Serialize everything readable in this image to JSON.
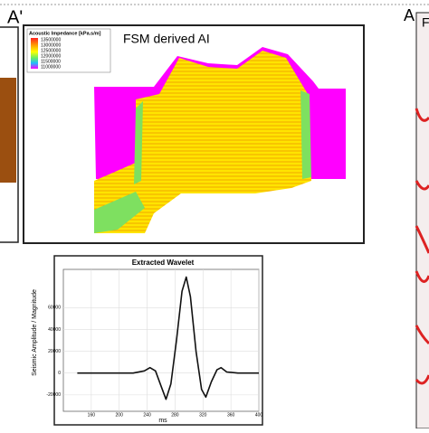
{
  "labels": {
    "left_panel": "A'",
    "right_panel": "A",
    "right_inset": "F"
  },
  "ai_panel": {
    "title": "FSM derived AI",
    "legend_title": "Acoustic Impedance [kPa.s/m]",
    "legend_ticks": [
      "13500000",
      "13000000",
      "12500000",
      "12000000",
      "11500000",
      "11000000"
    ]
  },
  "chart_data": {
    "type": "line",
    "title": "Extracted Wavelet",
    "x_label": "ms",
    "y_label": "Seismic Amplitude / Magnitude",
    "x": [
      140,
      180,
      220,
      236,
      244,
      252,
      260,
      267,
      274,
      282,
      290,
      296,
      302,
      310,
      318,
      324,
      332,
      340,
      346,
      354,
      370,
      400
    ],
    "series": [
      {
        "name": "Wavelet",
        "color": "#111111",
        "values": [
          0,
          0,
          0,
          2000,
          5000,
          2000,
          -12000,
          -24000,
          -10000,
          30000,
          75000,
          88000,
          70000,
          20000,
          -15000,
          -22000,
          -8000,
          3000,
          5000,
          1000,
          0,
          0
        ]
      }
    ],
    "xlim": [
      120,
      400
    ],
    "xticks": [
      160,
      200,
      240,
      280,
      320,
      360,
      400
    ],
    "ylim": [
      -35000,
      95000
    ],
    "yticks": [
      -20000,
      0,
      20000,
      40000,
      60000
    ],
    "grid": true
  }
}
